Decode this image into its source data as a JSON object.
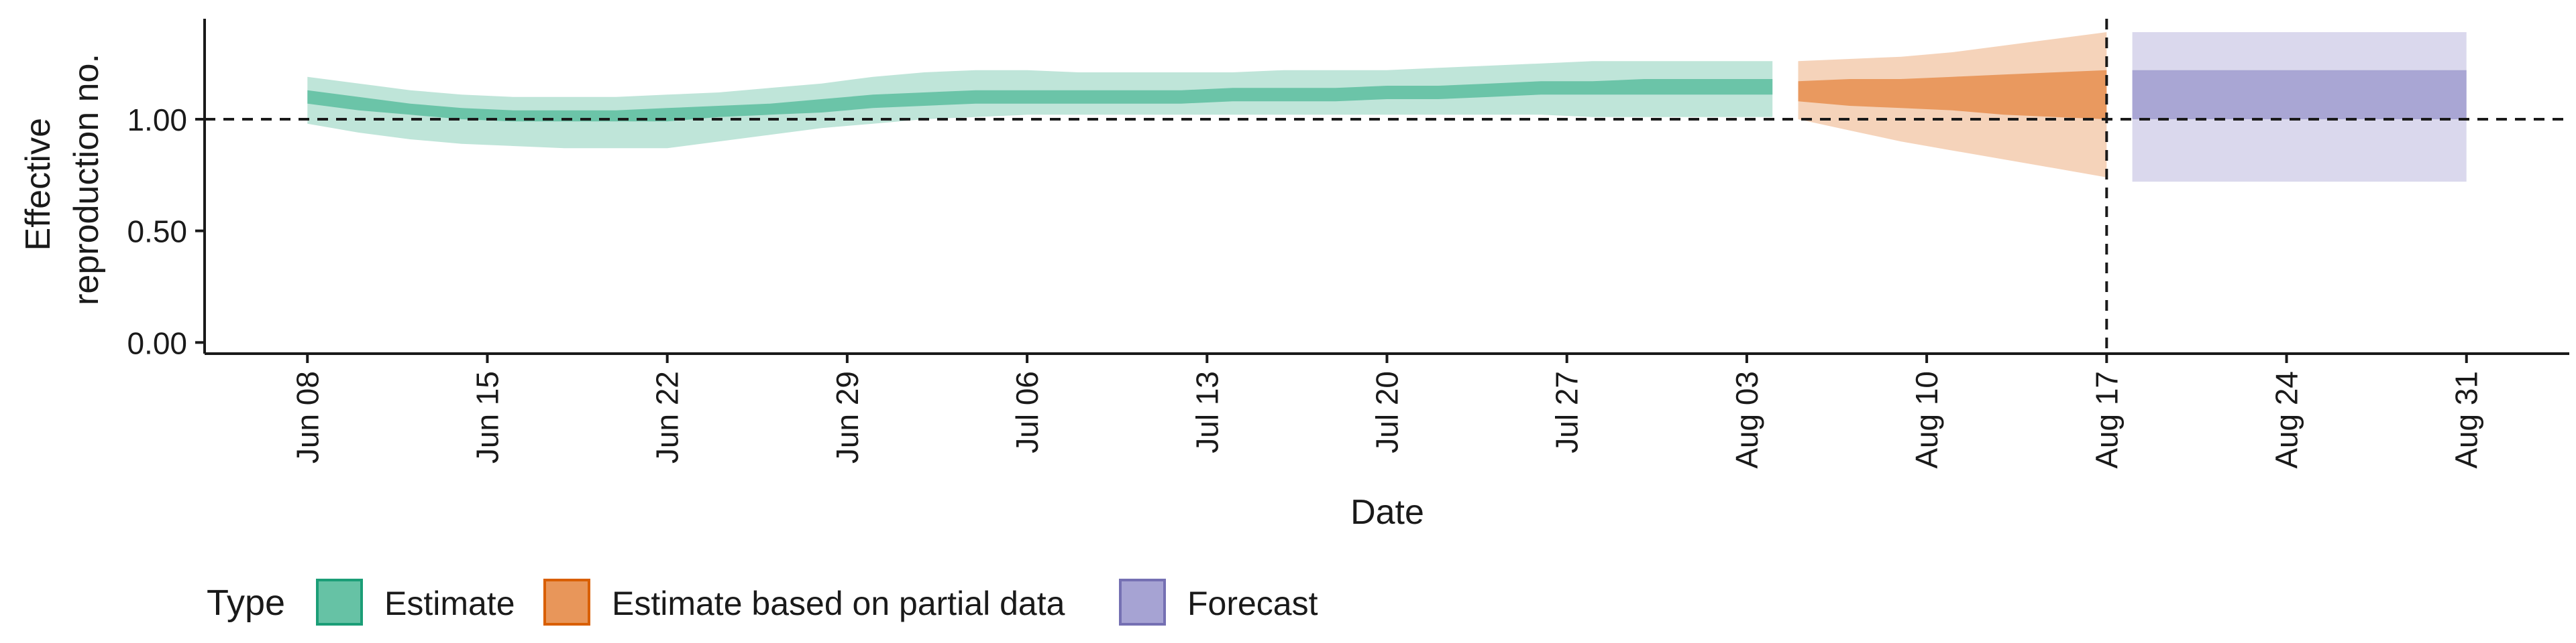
{
  "chart_data": {
    "type": "area",
    "title": "",
    "xlabel": "Date",
    "ylabel": "Effective reproduction no.",
    "x_ticks": [
      "Jun 08",
      "Jun 15",
      "Jun 22",
      "Jun 29",
      "Jul 06",
      "Jul 13",
      "Jul 20",
      "Jul 27",
      "Aug 03",
      "Aug 10",
      "Aug 17",
      "Aug 24",
      "Aug 31"
    ],
    "y_ticks": [
      "0.00",
      "0.50",
      "1.00"
    ],
    "ylim": [
      -0.05,
      1.45
    ],
    "xlim": [
      "2020-06-04",
      "2020-09-04"
    ],
    "reference_hline": 1.0,
    "reference_vline": "2020-08-17",
    "legend": {
      "title": "Type",
      "position": "bottom-left",
      "items": [
        {
          "label": "Estimate",
          "fill": "#66c2a5",
          "stroke": "#1b9e77"
        },
        {
          "label": "Estimate based on partial data",
          "fill": "#e8965a",
          "stroke": "#d95f02"
        },
        {
          "label": "Forecast",
          "fill": "#a6a3d3",
          "stroke": "#7570b3"
        }
      ]
    },
    "series": [
      {
        "name": "Estimate",
        "color": "#66c2a5",
        "x": [
          "2020-06-08",
          "2020-06-10",
          "2020-06-12",
          "2020-06-14",
          "2020-06-16",
          "2020-06-18",
          "2020-06-20",
          "2020-06-22",
          "2020-06-24",
          "2020-06-26",
          "2020-06-28",
          "2020-06-30",
          "2020-07-02",
          "2020-07-04",
          "2020-07-06",
          "2020-07-08",
          "2020-07-10",
          "2020-07-12",
          "2020-07-14",
          "2020-07-16",
          "2020-07-18",
          "2020-07-20",
          "2020-07-22",
          "2020-07-24",
          "2020-07-26",
          "2020-07-28",
          "2020-07-30",
          "2020-08-01",
          "2020-08-04"
        ],
        "lower_90": [
          0.98,
          0.94,
          0.91,
          0.89,
          0.88,
          0.87,
          0.87,
          0.87,
          0.9,
          0.93,
          0.96,
          0.98,
          1.0,
          1.01,
          1.02,
          1.02,
          1.02,
          1.02,
          1.02,
          1.02,
          1.02,
          1.02,
          1.02,
          1.02,
          1.02,
          1.01,
          1.01,
          1.01,
          1.01
        ],
        "upper_90": [
          1.19,
          1.16,
          1.13,
          1.11,
          1.1,
          1.1,
          1.1,
          1.11,
          1.12,
          1.14,
          1.16,
          1.19,
          1.21,
          1.22,
          1.22,
          1.21,
          1.21,
          1.21,
          1.21,
          1.22,
          1.22,
          1.22,
          1.23,
          1.24,
          1.25,
          1.26,
          1.26,
          1.26,
          1.26
        ],
        "lower_50": [
          1.07,
          1.04,
          1.02,
          1.0,
          0.99,
          0.99,
          0.99,
          0.99,
          1.01,
          1.02,
          1.03,
          1.05,
          1.06,
          1.07,
          1.07,
          1.07,
          1.07,
          1.07,
          1.08,
          1.08,
          1.08,
          1.09,
          1.09,
          1.1,
          1.11,
          1.11,
          1.11,
          1.11,
          1.11
        ],
        "upper_50": [
          1.13,
          1.1,
          1.07,
          1.05,
          1.04,
          1.04,
          1.04,
          1.05,
          1.06,
          1.07,
          1.09,
          1.11,
          1.12,
          1.13,
          1.13,
          1.13,
          1.13,
          1.13,
          1.14,
          1.14,
          1.14,
          1.15,
          1.15,
          1.16,
          1.17,
          1.17,
          1.18,
          1.18,
          1.18
        ]
      },
      {
        "name": "Estimate based on partial data",
        "color": "#e8965a",
        "x": [
          "2020-08-05",
          "2020-08-07",
          "2020-08-09",
          "2020-08-11",
          "2020-08-13",
          "2020-08-15",
          "2020-08-17"
        ],
        "lower_90": [
          1.0,
          0.95,
          0.9,
          0.86,
          0.82,
          0.78,
          0.74
        ],
        "upper_90": [
          1.26,
          1.27,
          1.28,
          1.3,
          1.33,
          1.36,
          1.39
        ],
        "lower_50": [
          1.08,
          1.06,
          1.05,
          1.04,
          1.02,
          1.01,
          1.0
        ],
        "upper_50": [
          1.17,
          1.18,
          1.18,
          1.19,
          1.2,
          1.21,
          1.22
        ]
      },
      {
        "name": "Forecast",
        "color": "#a6a3d3",
        "x": [
          "2020-08-18",
          "2020-08-31"
        ],
        "lower_90": [
          0.72,
          0.72
        ],
        "upper_90": [
          1.39,
          1.39
        ],
        "lower_50": [
          1.0,
          1.0
        ],
        "upper_50": [
          1.22,
          1.22
        ]
      }
    ]
  }
}
